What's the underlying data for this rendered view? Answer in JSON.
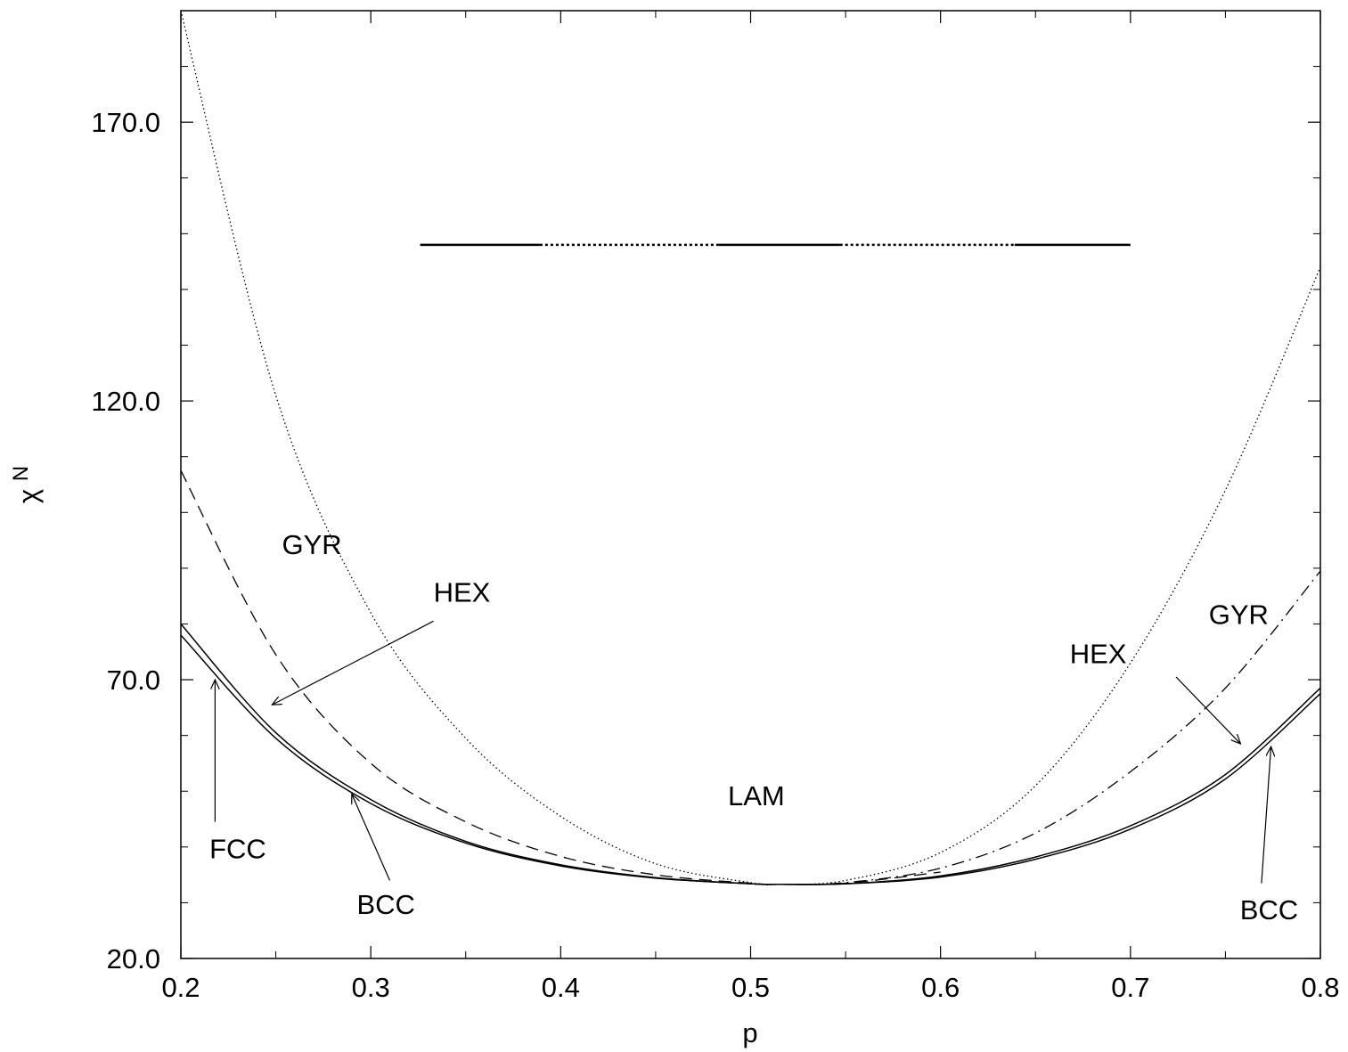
{
  "chart_data": {
    "type": "line",
    "xlabel": "p",
    "ylabel": "χN",
    "ylabel_parts": {
      "symbol": "χ",
      "sup": "N"
    },
    "xlim": [
      0.2,
      0.8
    ],
    "ylim": [
      20.0,
      190.0
    ],
    "xticks": [
      0.2,
      0.3,
      0.4,
      0.5,
      0.6,
      0.7,
      0.8
    ],
    "xtick_labels": [
      "0.2",
      "0.3",
      "0.4",
      "0.5",
      "0.6",
      "0.7",
      "0.8"
    ],
    "xticks_minor": [
      0.25,
      0.35,
      0.45,
      0.55,
      0.65,
      0.75
    ],
    "yticks": [
      20,
      70,
      120,
      170
    ],
    "ytick_labels": [
      "20.0",
      "70.0",
      "120.0",
      "170.0"
    ],
    "yticks_minor": [
      30,
      40,
      50,
      60,
      80,
      90,
      100,
      110,
      130,
      140,
      150,
      160,
      180
    ],
    "grid": false,
    "legend": "none",
    "series": [
      {
        "style": "solid",
        "x": [
          0.2,
          0.25,
          0.3,
          0.35,
          0.4,
          0.45,
          0.5,
          0.515,
          0.55,
          0.6,
          0.65,
          0.7,
          0.75,
          0.8
        ],
        "y": [
          80.0,
          60.5,
          48.5,
          41.0,
          36.8,
          34.5,
          33.4,
          33.3,
          33.4,
          34.8,
          38.2,
          43.8,
          53.0,
          68.5
        ]
      },
      {
        "style": "solid",
        "x": [
          0.2,
          0.25,
          0.3,
          0.35,
          0.4,
          0.45,
          0.5,
          0.515,
          0.55,
          0.6,
          0.65,
          0.7,
          0.75,
          0.8
        ],
        "y": [
          78.0,
          59.5,
          47.8,
          40.7,
          36.6,
          34.4,
          33.4,
          33.3,
          33.4,
          34.6,
          37.8,
          43.2,
          52.2,
          67.5
        ]
      },
      {
        "style": "dashed",
        "x": [
          0.2,
          0.25,
          0.3,
          0.35,
          0.4,
          0.45,
          0.5,
          0.515,
          0.55,
          0.6
        ],
        "y": [
          107.5,
          74.5,
          55.0,
          44.5,
          38.3,
          35.0,
          33.5,
          33.3,
          33.5,
          35.5
        ]
      },
      {
        "style": "dashdot",
        "x": [
          0.515,
          0.55,
          0.6,
          0.65,
          0.7,
          0.75,
          0.8
        ],
        "y": [
          33.3,
          33.6,
          36.2,
          42.5,
          53.5,
          68.5,
          89.5
        ]
      },
      {
        "style": "dotted",
        "x": [
          0.2,
          0.25,
          0.3,
          0.35,
          0.4,
          0.45,
          0.5,
          0.515,
          0.55,
          0.6,
          0.65,
          0.7,
          0.75,
          0.8
        ],
        "y": [
          190.0,
          121.0,
          82.0,
          59.5,
          45.5,
          37.0,
          33.6,
          33.3,
          34.0,
          39.0,
          51.0,
          73.0,
          104.0,
          144.0
        ]
      }
    ],
    "segments": [
      {
        "style": "solid",
        "x": [
          0.326,
          0.389
        ],
        "y": 148
      },
      {
        "style": "dotted",
        "x": [
          0.389,
          0.483
        ],
        "y": 148
      },
      {
        "style": "solid",
        "x": [
          0.483,
          0.547
        ],
        "y": 148
      },
      {
        "style": "dotted",
        "x": [
          0.547,
          0.639
        ],
        "y": 148
      },
      {
        "style": "solid",
        "x": [
          0.639,
          0.7
        ],
        "y": 148
      }
    ],
    "annotations": [
      {
        "text": "GYR",
        "x": 0.269,
        "y": 92.5
      },
      {
        "text": "HEX",
        "x": 0.348,
        "y": 84.0,
        "arrow_from": [
          0.333,
          80.5
        ],
        "arrow_to": [
          0.248,
          65.5
        ]
      },
      {
        "text": "LAM",
        "x": 0.503,
        "y": 47.5
      },
      {
        "text": "GYR",
        "x": 0.757,
        "y": 80.0
      },
      {
        "text": "HEX",
        "x": 0.683,
        "y": 73.0,
        "arrow_from": [
          0.724,
          70.5
        ],
        "arrow_to": [
          0.758,
          58.5
        ]
      },
      {
        "text": "FCC",
        "x": 0.23,
        "y": 38.0,
        "arrow_from": [
          0.218,
          44.5
        ],
        "arrow_to": [
          0.218,
          70.0
        ]
      },
      {
        "text": "BCC",
        "x": 0.308,
        "y": 28.0,
        "arrow_from": [
          0.31,
          34.0
        ],
        "arrow_to": [
          0.29,
          49.5
        ]
      },
      {
        "text": "BCC",
        "x": 0.773,
        "y": 27.0,
        "arrow_from": [
          0.769,
          33.5
        ],
        "arrow_to": [
          0.774,
          58.0
        ]
      }
    ]
  }
}
